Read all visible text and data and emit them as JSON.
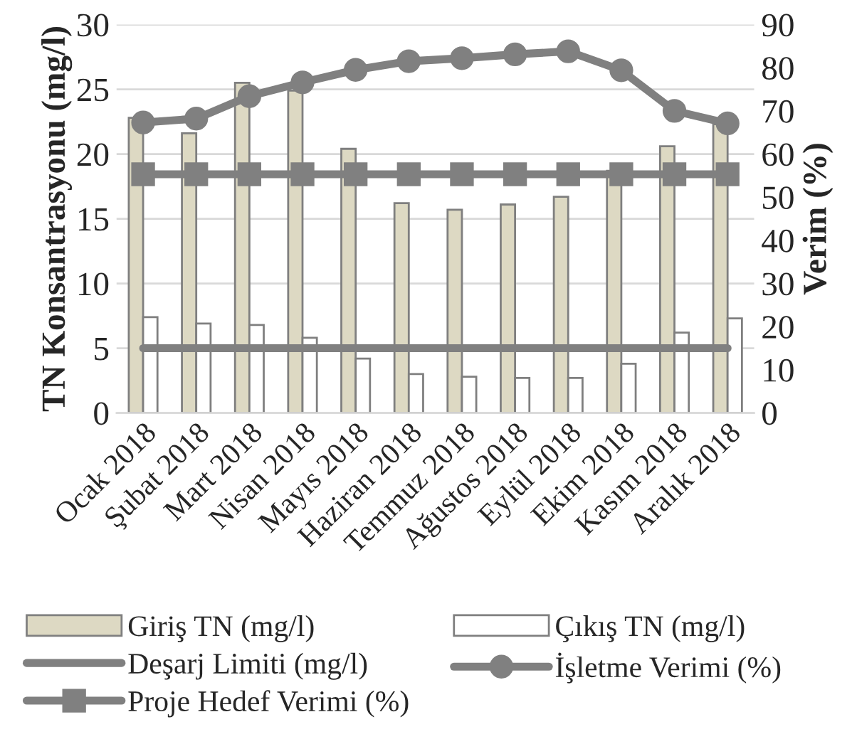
{
  "chart_data": {
    "type": "bar",
    "categories": [
      "Ocak 2018",
      "Şubat 2018",
      "Mart 2018",
      "Nisan 2018",
      "Mayıs 2018",
      "Haziran 2018",
      "Temmuz 2018",
      "Ağustos 2018",
      "Eylül 2018",
      "Ekim 2018",
      "Kasım 2018",
      "Aralık 2018"
    ],
    "series": [
      {
        "name": "Giriş TN (mg/l)",
        "color": "#ddd9c3",
        "values": [
          22.8,
          21.6,
          25.5,
          24.9,
          20.4,
          16.2,
          15.7,
          16.1,
          16.7,
          18.7,
          20.6,
          22.3
        ]
      },
      {
        "name": "Çıkış TN (mg/l)",
        "color": "#ffffff",
        "values": [
          7.4,
          6.9,
          6.8,
          5.8,
          4.2,
          3.0,
          2.8,
          2.7,
          2.7,
          3.8,
          6.2,
          7.3
        ]
      },
      {
        "name": "Deşarj Limiti (mg/l)",
        "type": "line",
        "color": "#808080",
        "marker": "none",
        "values": [
          5,
          5,
          5,
          5,
          5,
          5,
          5,
          5,
          5,
          5,
          5,
          5
        ]
      },
      {
        "name": "İşletme Verimi (%)",
        "type": "line",
        "color": "#808080",
        "marker": "circle",
        "axis": "y2",
        "values": [
          67.3,
          68.2,
          73.4,
          76.6,
          79.5,
          81.5,
          82.2,
          83.1,
          83.8,
          79.4,
          70.0,
          67.1
        ]
      },
      {
        "name": "Proje Hedef Verimi (%)",
        "type": "line",
        "color": "#808080",
        "marker": "square",
        "axis": "y2",
        "values": [
          55.3,
          55.3,
          55.3,
          55.3,
          55.3,
          55.3,
          55.3,
          55.3,
          55.3,
          55.3,
          55.3,
          55.3
        ]
      }
    ],
    "ylabel": "TN Konsantrasyonu (mg/l)",
    "y2label": "Verim (%)",
    "ylim": [
      0,
      30
    ],
    "yticks": [
      0,
      5,
      10,
      15,
      20,
      25,
      30
    ],
    "y2lim": [
      0,
      90
    ],
    "y2ticks": [
      0,
      10,
      20,
      30,
      40,
      50,
      60,
      70,
      80,
      90
    ],
    "grid": "y",
    "legend": "bottom"
  }
}
